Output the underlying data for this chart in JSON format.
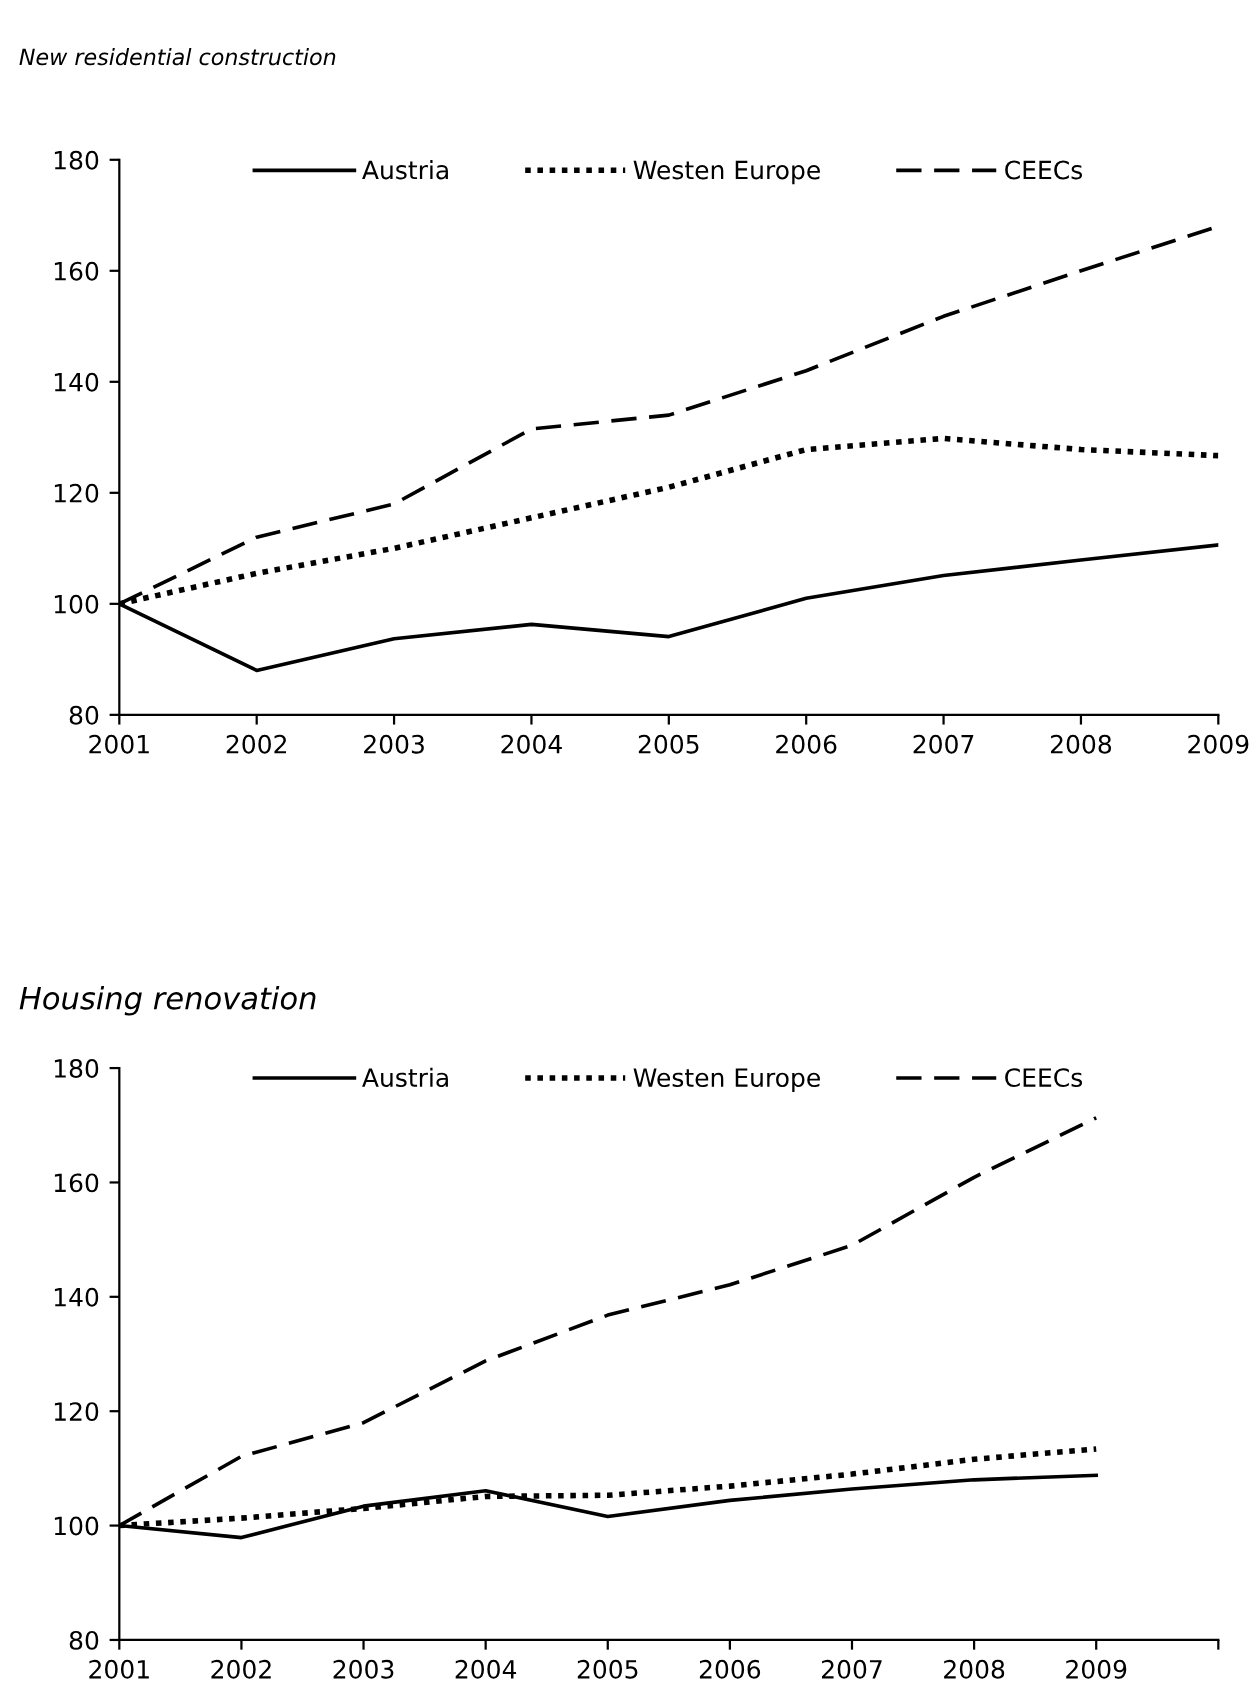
{
  "chart_data": [
    {
      "type": "line",
      "title": "New residential construction",
      "categories": [
        "2001",
        "2002",
        "2003",
        "2004",
        "2005",
        "2006",
        "2007",
        "2008",
        "2009"
      ],
      "ylim": [
        80,
        180
      ],
      "yticks": [
        80,
        100,
        120,
        140,
        160,
        180
      ],
      "grid": false,
      "legend": "top",
      "marker": "none",
      "series": [
        {
          "name": "Austria",
          "color": "#000000",
          "line_style": "solid",
          "values": [
            100,
            88,
            93.7,
            96.3,
            94.1,
            101,
            105.1,
            107.9,
            110.6
          ]
        },
        {
          "name": "Westen Europe",
          "color": "#000000",
          "line_style": "dotted",
          "values": [
            100,
            105.5,
            110,
            115.5,
            121,
            127.8,
            129.8,
            127.8,
            126.7
          ]
        },
        {
          "name": "CEECs",
          "color": "#000000",
          "line_style": "dashed",
          "values": [
            100,
            112,
            118,
            131.5,
            134,
            142,
            151.8,
            160,
            168
          ]
        }
      ]
    },
    {
      "type": "line",
      "title": "Housing renovation",
      "categories": [
        "2001",
        "2002",
        "2003",
        "2004",
        "2005",
        "2006",
        "2007",
        "2008",
        "2009",
        null
      ],
      "ylim": [
        80,
        180
      ],
      "yticks": [
        80,
        100,
        120,
        140,
        160,
        180
      ],
      "grid": false,
      "legend": "top",
      "marker": "none",
      "series": [
        {
          "name": "Austria",
          "color": "#000000",
          "line_style": "solid",
          "values": [
            100,
            97.9,
            103.4,
            106.1,
            101.6,
            104.4,
            106.4,
            108,
            108.8,
            null
          ]
        },
        {
          "name": "Westen Europe",
          "color": "#000000",
          "line_style": "dotted",
          "values": [
            100,
            101.3,
            103,
            105.1,
            105.3,
            106.9,
            109,
            111.6,
            113.4,
            null
          ]
        },
        {
          "name": "CEECs",
          "color": "#000000",
          "line_style": "dashed",
          "values": [
            100,
            112.1,
            118,
            128.8,
            136.8,
            142.1,
            149,
            160.9,
            171.3,
            null
          ]
        }
      ]
    }
  ]
}
